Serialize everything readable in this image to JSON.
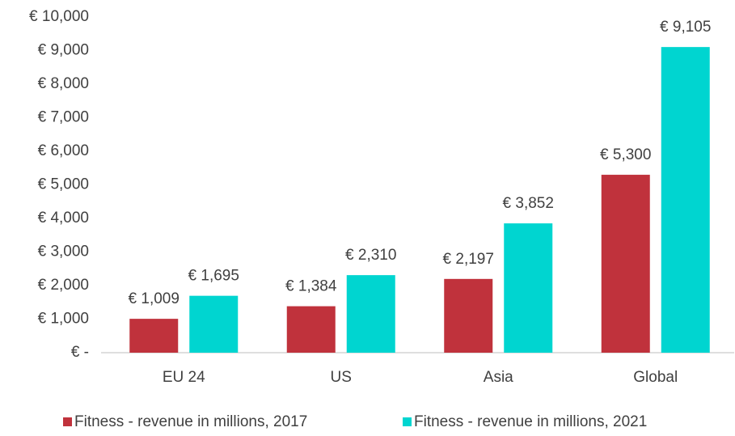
{
  "chart_data": {
    "type": "bar",
    "categories": [
      "EU 24",
      "US",
      "Asia",
      "Global"
    ],
    "series": [
      {
        "name": "Fitness - revenue in millions, 2017",
        "color": "#c0323c",
        "values": [
          1009,
          1384,
          2197,
          5300
        ],
        "value_labels": [
          "€ 1,009",
          "€ 1,384",
          "€ 2,197",
          "€ 5,300"
        ]
      },
      {
        "name": "Fitness - revenue in millions, 2021",
        "color": "#00d5d0",
        "values": [
          1695,
          2310,
          3852,
          9105
        ],
        "value_labels": [
          "€ 1,695",
          "€ 2,310",
          "€ 3,852",
          "€ 9,105"
        ]
      }
    ],
    "ylim": [
      0,
      10000
    ],
    "yticks": [
      {
        "value": 0,
        "label": "€ -"
      },
      {
        "value": 1000,
        "label": "€ 1,000"
      },
      {
        "value": 2000,
        "label": "€ 2,000"
      },
      {
        "value": 3000,
        "label": "€ 3,000"
      },
      {
        "value": 4000,
        "label": "€ 4,000"
      },
      {
        "value": 5000,
        "label": "€ 5,000"
      },
      {
        "value": 6000,
        "label": "€ 6,000"
      },
      {
        "value": 7000,
        "label": "€ 7,000"
      },
      {
        "value": 8000,
        "label": "€ 8,000"
      },
      {
        "value": 9000,
        "label": "€ 9,000"
      },
      {
        "value": 10000,
        "label": "€ 10,000"
      }
    ],
    "grid": false,
    "legend": "bottom"
  }
}
